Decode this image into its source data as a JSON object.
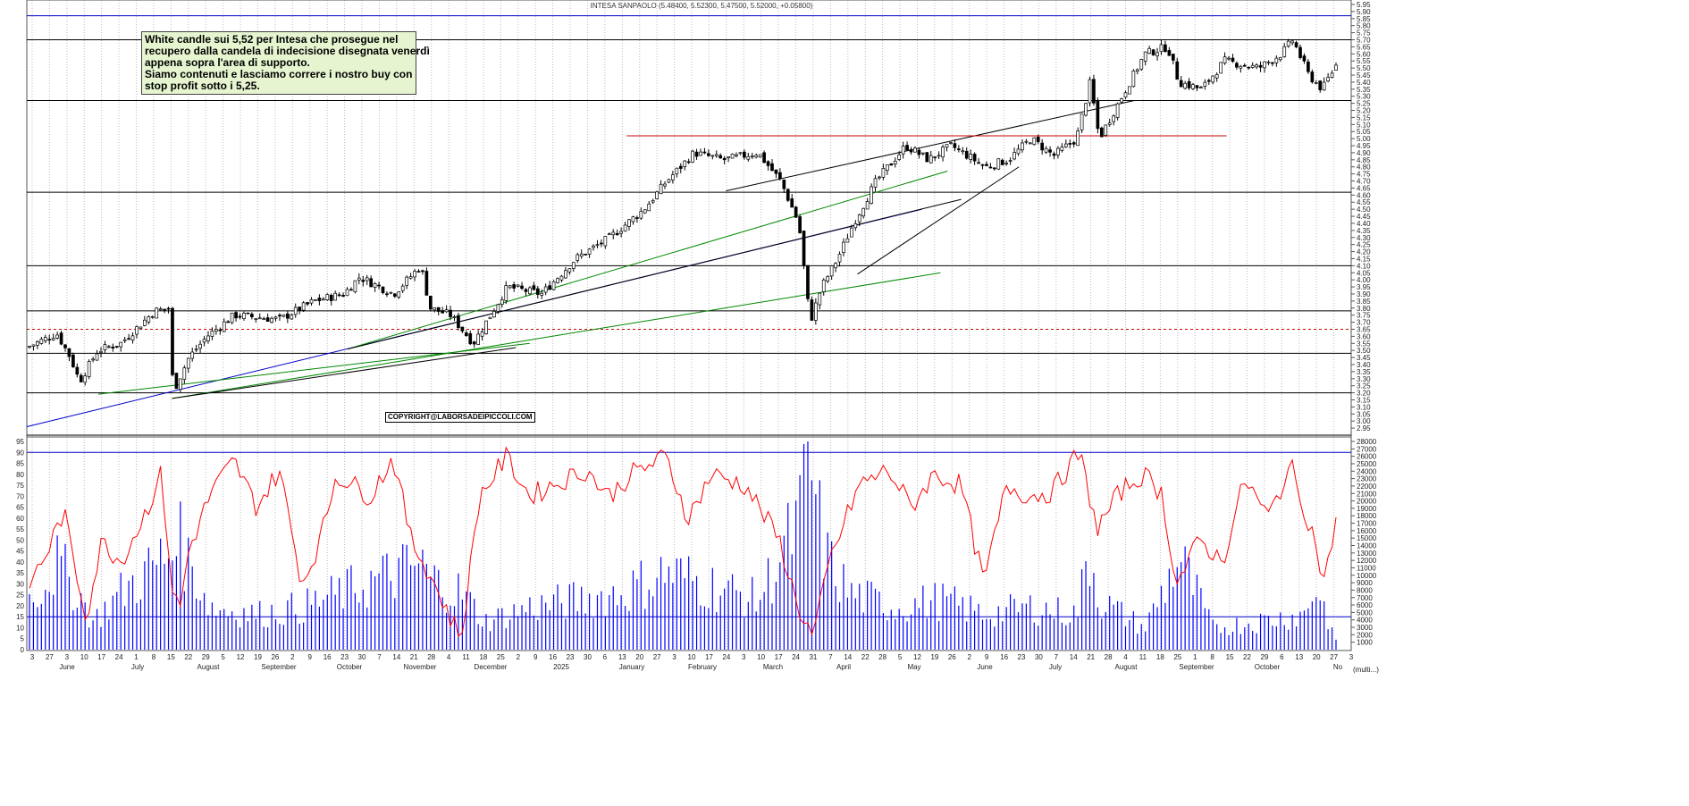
{
  "chart_data": [
    {
      "type": "candlestick",
      "title": "INTESA SANPAOLO (5.48400, 5.52300, 5.47500, 5.52000, +0.05800)",
      "ylim": [
        2.9,
        5.95
      ],
      "y_ticks": [
        "5.95",
        "5.90",
        "5.85",
        "5.80",
        "5.75",
        "5.70",
        "5.65",
        "5.60",
        "5.55",
        "5.50",
        "5.45",
        "5.40",
        "5.35",
        "5.30",
        "5.25",
        "5.20",
        "5.15",
        "5.10",
        "5.05",
        "5.00",
        "4.95",
        "4.90",
        "4.85",
        "4.80",
        "4.75",
        "4.70",
        "4.65",
        "4.60",
        "4.55",
        "4.50",
        "4.45",
        "4.40",
        "4.35",
        "4.30",
        "4.25",
        "4.20",
        "4.15",
        "4.10",
        "4.05",
        "4.00",
        "3.95",
        "3.90",
        "3.85",
        "3.80",
        "3.75",
        "3.70",
        "3.65",
        "3.60",
        "3.55",
        "3.50",
        "3.45",
        "3.40",
        "3.35",
        "3.30",
        "3.25",
        "3.20",
        "3.15",
        "3.10",
        "3.05",
        "3.00",
        "2.95"
      ],
      "grid": "vertical dotted",
      "horizontal_levels": [
        5.87,
        5.7,
        5.27,
        4.62,
        4.1,
        3.78,
        3.65,
        3.48,
        3.2,
        2.9
      ],
      "trend_segments": [
        {
          "x": [
            0,
            388
          ],
          "y": [
            2.96,
            4.5
          ],
          "color": "#0000cc"
        },
        {
          "x": [
            31,
            218
          ],
          "y": [
            3.19,
            3.55
          ],
          "color": "#008800"
        },
        {
          "x": [
            63,
            396
          ],
          "y": [
            3.16,
            4.05
          ],
          "color": "#008800"
        },
        {
          "x": [
            139,
            399
          ],
          "y": [
            3.51,
            4.77
          ],
          "color": "#008800"
        },
        {
          "x": [
            63,
            212
          ],
          "y": [
            3.16,
            3.52
          ],
          "color": "#000000"
        },
        {
          "x": [
            139,
            405
          ],
          "y": [
            3.51,
            4.57
          ],
          "color": "#000000"
        },
        {
          "x": [
            303,
            480
          ],
          "y": [
            4.63,
            5.27
          ],
          "color": "#000000"
        },
        {
          "x": [
            260,
            520
          ],
          "y": [
            5.02,
            5.02
          ],
          "color": "#cc0000"
        },
        {
          "x": [
            360,
            430
          ],
          "y": [
            4.04,
            4.8
          ],
          "color": "#000000"
        }
      ],
      "annotation": [
        "White candle sui 5,52 per Intesa che prosegue nel",
        "recupero dalla candela di indecisione disegnata venerdì",
        "appena sopra l'area di supporto.",
        "Siamo contenuti e lasciamo correre i nostro buy con",
        "stop profit sotto i 5,25."
      ],
      "copyright": "COPYRIGHT@LABORSADEIPICCOLI.COM",
      "sessions": 330,
      "ohlc_sample_first": [
        3.52,
        3.55,
        3.5,
        3.53
      ],
      "ohlc_sample_last": [
        5.484,
        5.523,
        5.475,
        5.52
      ],
      "closes_shape": [
        [
          0,
          3.53
        ],
        [
          12,
          3.62
        ],
        [
          18,
          3.45
        ],
        [
          22,
          3.28
        ],
        [
          30,
          3.5
        ],
        [
          40,
          3.55
        ],
        [
          55,
          3.78
        ],
        [
          62,
          3.8
        ],
        [
          63,
          3.2
        ],
        [
          70,
          3.45
        ],
        [
          78,
          3.6
        ],
        [
          90,
          3.75
        ],
        [
          110,
          3.72
        ],
        [
          125,
          3.85
        ],
        [
          138,
          3.9
        ],
        [
          145,
          4.02
        ],
        [
          160,
          3.9
        ],
        [
          172,
          4.1
        ],
        [
          176,
          3.8
        ],
        [
          185,
          3.75
        ],
        [
          195,
          3.55
        ],
        [
          210,
          3.95
        ],
        [
          225,
          3.9
        ],
        [
          240,
          4.15
        ],
        [
          255,
          4.3
        ],
        [
          270,
          4.5
        ],
        [
          280,
          4.7
        ],
        [
          292,
          4.9
        ],
        [
          305,
          4.85
        ],
        [
          320,
          4.9
        ],
        [
          330,
          4.7
        ],
        [
          338,
          4.4
        ],
        [
          343,
          3.7
        ],
        [
          348,
          3.95
        ],
        [
          355,
          4.15
        ],
        [
          362,
          4.4
        ],
        [
          372,
          4.7
        ],
        [
          385,
          4.95
        ],
        [
          395,
          4.85
        ],
        [
          405,
          4.95
        ],
        [
          420,
          4.8
        ],
        [
          430,
          4.85
        ],
        [
          440,
          5.0
        ],
        [
          450,
          4.88
        ],
        [
          460,
          5.0
        ],
        [
          466,
          5.4
        ],
        [
          470,
          5.0
        ],
        [
          480,
          5.3
        ],
        [
          490,
          5.6
        ],
        [
          500,
          5.65
        ],
        [
          505,
          5.4
        ],
        [
          515,
          5.35
        ],
        [
          525,
          5.55
        ],
        [
          540,
          5.5
        ],
        [
          550,
          5.6
        ],
        [
          555,
          5.7
        ],
        [
          562,
          5.45
        ],
        [
          568,
          5.35
        ],
        [
          574,
          5.52
        ]
      ]
    },
    {
      "type": "line+bar",
      "series": [
        {
          "name": "",
          "kind": "line",
          "color": "#ff0000"
        },
        {
          "name": "",
          "kind": "bar",
          "color": "#0000ff"
        }
      ],
      "left_ticks": [
        "95",
        "90",
        "85",
        "80",
        "75",
        "70",
        "65",
        "60",
        "55",
        "50",
        "45",
        "40",
        "35",
        "30",
        "25",
        "20",
        "15",
        "10",
        "5",
        "0"
      ],
      "right_ticks": [
        "28000",
        "27000",
        "26000",
        "25000",
        "24000",
        "23000",
        "22000",
        "21000",
        "20000",
        "19000",
        "18000",
        "17000",
        "16000",
        "15000",
        "14000",
        "13000",
        "12000",
        "11000",
        "10000",
        "9000",
        "8000",
        "7000",
        "6000",
        "5000",
        "4000",
        "3000",
        "2000",
        "1000"
      ],
      "right_unit": "(multi...)",
      "left_ylim": [
        0,
        95
      ],
      "right_ylim": [
        0,
        28000
      ],
      "reference_lines": [
        90,
        15
      ],
      "oscillator_shape": [
        [
          0,
          30
        ],
        [
          8,
          45
        ],
        [
          15,
          63
        ],
        [
          20,
          38
        ],
        [
          25,
          15
        ],
        [
          32,
          50
        ],
        [
          40,
          40
        ],
        [
          50,
          60
        ],
        [
          58,
          80
        ],
        [
          63,
          27
        ],
        [
          66,
          17
        ],
        [
          70,
          45
        ],
        [
          80,
          72
        ],
        [
          90,
          86
        ],
        [
          100,
          65
        ],
        [
          110,
          82
        ],
        [
          120,
          30
        ],
        [
          128,
          50
        ],
        [
          135,
          80
        ],
        [
          150,
          70
        ],
        [
          160,
          88
        ],
        [
          168,
          50
        ],
        [
          176,
          35
        ],
        [
          185,
          15
        ],
        [
          190,
          5
        ],
        [
          198,
          70
        ],
        [
          210,
          88
        ],
        [
          220,
          70
        ],
        [
          230,
          75
        ],
        [
          245,
          82
        ],
        [
          255,
          70
        ],
        [
          265,
          80
        ],
        [
          280,
          88
        ],
        [
          290,
          60
        ],
        [
          300,
          80
        ],
        [
          315,
          75
        ],
        [
          330,
          50
        ],
        [
          338,
          20
        ],
        [
          345,
          5
        ],
        [
          352,
          40
        ],
        [
          365,
          75
        ],
        [
          378,
          82
        ],
        [
          388,
          65
        ],
        [
          398,
          80
        ],
        [
          410,
          75
        ],
        [
          420,
          30
        ],
        [
          430,
          75
        ],
        [
          440,
          70
        ],
        [
          450,
          72
        ],
        [
          462,
          90
        ],
        [
          470,
          55
        ],
        [
          480,
          72
        ],
        [
          490,
          80
        ],
        [
          498,
          72
        ],
        [
          505,
          30
        ],
        [
          515,
          50
        ],
        [
          525,
          40
        ],
        [
          535,
          78
        ],
        [
          545,
          60
        ],
        [
          555,
          84
        ],
        [
          565,
          52
        ],
        [
          570,
          30
        ],
        [
          575,
          60
        ]
      ],
      "volume_shape": [
        [
          0,
          7000
        ],
        [
          12,
          12000
        ],
        [
          20,
          9000
        ],
        [
          28,
          4000
        ],
        [
          40,
          8000
        ],
        [
          63,
          14000
        ],
        [
          64,
          25000
        ],
        [
          66,
          15000
        ],
        [
          80,
          6000
        ],
        [
          100,
          5000
        ],
        [
          120,
          6000
        ],
        [
          145,
          9000
        ],
        [
          172,
          12000
        ],
        [
          176,
          10000
        ],
        [
          190,
          8000
        ],
        [
          200,
          4000
        ],
        [
          220,
          6000
        ],
        [
          240,
          7000
        ],
        [
          260,
          8000
        ],
        [
          280,
          11000
        ],
        [
          300,
          9000
        ],
        [
          320,
          7000
        ],
        [
          338,
          18000
        ],
        [
          343,
          27000
        ],
        [
          345,
          21000
        ],
        [
          350,
          13000
        ],
        [
          360,
          8000
        ],
        [
          380,
          6000
        ],
        [
          400,
          7000
        ],
        [
          420,
          5000
        ],
        [
          440,
          6000
        ],
        [
          460,
          5000
        ],
        [
          466,
          14000
        ],
        [
          470,
          7000
        ],
        [
          490,
          3000
        ],
        [
          505,
          13000
        ],
        [
          520,
          3000
        ],
        [
          540,
          4000
        ],
        [
          560,
          5000
        ],
        [
          565,
          9000
        ],
        [
          570,
          5000
        ],
        [
          574,
          1000
        ]
      ]
    }
  ],
  "x_axis": {
    "day_ticks": [
      "3",
      "27",
      "3",
      "10",
      "17",
      "24",
      "1",
      "8",
      "15",
      "22",
      "29",
      "5",
      "12",
      "19",
      "26",
      "2",
      "9",
      "16",
      "23",
      "30",
      "7",
      "14",
      "21",
      "28",
      "4",
      "11",
      "18",
      "25",
      "2",
      "9",
      "16",
      "23",
      "30",
      "6",
      "13",
      "20",
      "27",
      "3",
      "10",
      "17",
      "24",
      "3",
      "10",
      "17",
      "24",
      "31",
      "7",
      "14",
      "22",
      "28",
      "5",
      "12",
      "19",
      "26",
      "2",
      "9",
      "16",
      "23",
      "30",
      "7",
      "14",
      "21",
      "28",
      "4",
      "11",
      "18",
      "25",
      "1",
      "8",
      "15",
      "22",
      "29",
      "6",
      "13",
      "20",
      "27",
      "3"
    ],
    "months": [
      "June",
      "July",
      "August",
      "September",
      "October",
      "November",
      "December",
      "2025",
      "January",
      "February",
      "March",
      "April",
      "May",
      "June",
      "July",
      "August",
      "September",
      "October",
      "No"
    ]
  }
}
